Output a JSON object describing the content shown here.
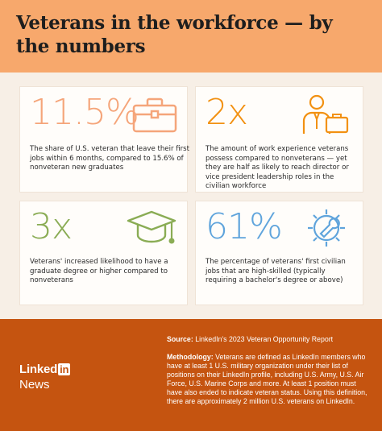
{
  "header": {
    "title": "Veterans in the workforce — by the numbers"
  },
  "colors": {
    "header_bg": "#f7a86c",
    "footer_bg": "#c55410",
    "stat1": "#f5a57a",
    "stat2": "#f29112",
    "stat3": "#8aac54",
    "stat4": "#5fa4dc"
  },
  "stats": [
    {
      "value": "11.5%",
      "text": "The share of U.S. veteran that leave their first jobs within 6 months, compared to 15.6% of nonveteran new graduates",
      "icon": "briefcase-icon"
    },
    {
      "value": "2x",
      "text": "The amount of work experience veterans possess compared to nonveterans — yet they are half as likely to reach director or vice president leadership roles in the civilian workforce",
      "icon": "businessman-icon"
    },
    {
      "value": "3x",
      "text": "Veterans' increased likelihood to have a graduate degree or higher compared to nonveterans",
      "icon": "graduation-cap-icon"
    },
    {
      "value": "61%",
      "text": "The percentage of veterans' first civilian jobs that are high-skilled (typically requiring a bachelor's degree or above)",
      "icon": "gear-wrench-icon"
    }
  ],
  "footer": {
    "logo_word": "Linked",
    "logo_in": "in",
    "logo_sub": "News",
    "source_label": "Source:",
    "source_text": "LinkedIn's 2023 Veteran Opportunity Report",
    "method_label": "Methodology:",
    "method_text": "Veterans are defined as LinkedIn members who have at least 1 U.S. military organization under their list of positions on their LinkedIn profile, including U.S. Army, U.S. Air Force, U.S. Marine Corps and more. At least 1 position must have also ended to indicate veteran status. Using this definition, there are approximately 2 million U.S. veterans on LinkedIn."
  }
}
